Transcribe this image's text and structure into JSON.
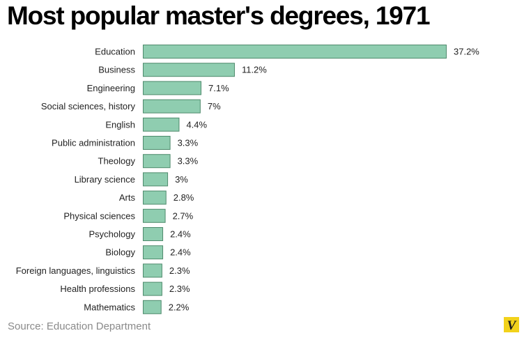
{
  "chart_data": {
    "type": "bar",
    "orientation": "horizontal",
    "title": "Most popular master's degrees, 1971",
    "categories": [
      "Education",
      "Business",
      "Engineering",
      "Social sciences, history",
      "English",
      "Public administration",
      "Theology",
      "Library science",
      "Arts",
      "Physical sciences",
      "Psychology",
      "Biology",
      "Foreign languages, linguistics",
      "Health professions",
      "Mathematics"
    ],
    "values": [
      37.2,
      11.2,
      7.1,
      7,
      4.4,
      3.3,
      3.3,
      3,
      2.8,
      2.7,
      2.4,
      2.4,
      2.3,
      2.3,
      2.2
    ],
    "value_labels": [
      "37.2%",
      "11.2%",
      "7.1%",
      "7%",
      "4.4%",
      "3.3%",
      "3.3%",
      "3%",
      "2.8%",
      "2.7%",
      "2.4%",
      "2.4%",
      "2.3%",
      "2.3%",
      "2.2%"
    ],
    "xlim": [
      0,
      37.2
    ],
    "grid": false,
    "legend": "none",
    "colors": {
      "bar_fill": "#8fcdb0",
      "bar_stroke": "#4e8a6c"
    }
  },
  "source": "Source: Education Department",
  "logo": {
    "icon": "vox-v-logo",
    "letter": "V",
    "color": "#f2d21b"
  }
}
